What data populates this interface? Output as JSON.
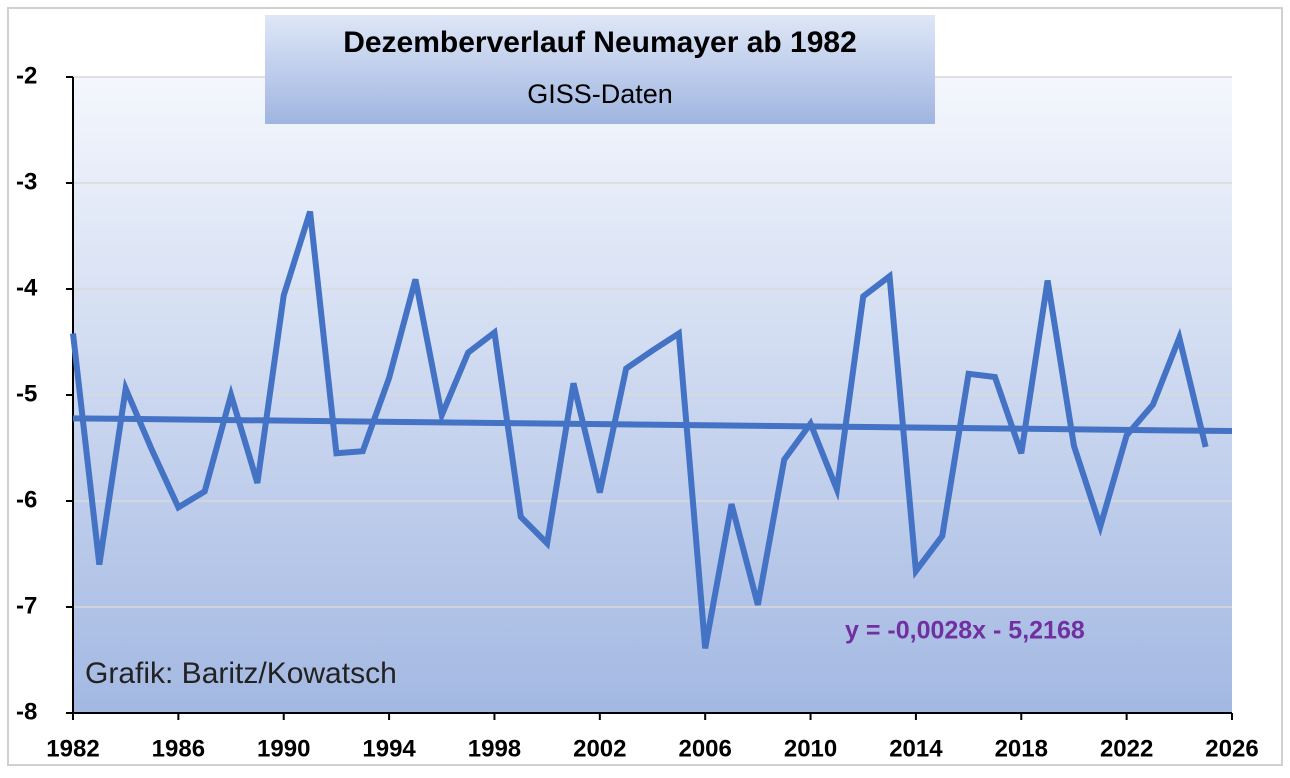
{
  "chart_data": {
    "type": "line",
    "title": "Dezemberverlauf Neumayer ab 1982",
    "subtitle": "GISS-Daten",
    "annotations": [
      "y = -0,0028x - 5,2168",
      "Grafik: Baritz/Kowatsch"
    ],
    "x": [
      1982,
      1983,
      1984,
      1985,
      1986,
      1987,
      1988,
      1989,
      1990,
      1991,
      1992,
      1993,
      1994,
      1995,
      1996,
      1997,
      1998,
      1999,
      2000,
      2001,
      2002,
      2003,
      2004,
      2005,
      2006,
      2007,
      2008,
      2009,
      2010,
      2011,
      2012,
      2013,
      2014,
      2015,
      2016,
      2017,
      2018,
      2019,
      2020,
      2021,
      2022,
      2023,
      2024,
      2025
    ],
    "values": [
      -4.42,
      -6.6,
      -4.94,
      -5.52,
      -6.06,
      -5.91,
      -5.0,
      -5.83,
      -4.06,
      -3.27,
      -5.55,
      -5.53,
      -4.84,
      -3.91,
      -5.19,
      -4.6,
      -4.41,
      -6.15,
      -6.4,
      -4.89,
      -5.92,
      -4.75,
      -4.58,
      -4.42,
      -7.39,
      -6.03,
      -6.98,
      -5.61,
      -5.27,
      -5.89,
      -4.07,
      -3.88,
      -6.66,
      -6.33,
      -4.8,
      -4.83,
      -5.55,
      -3.92,
      -5.48,
      -6.24,
      -5.38,
      -5.09,
      -4.46,
      -5.49
    ],
    "color": "#4472c4",
    "trendline": {
      "x": [
        1982,
        2026
      ],
      "values": [
        -5.22,
        -5.34
      ]
    },
    "annotation_color": "#7030a0",
    "xlim": [
      1982,
      2026
    ],
    "xticks": [
      1982,
      1986,
      1990,
      1994,
      1998,
      2002,
      2006,
      2010,
      2014,
      2018,
      2022,
      2026
    ],
    "ylim": [
      -8,
      -2
    ],
    "yticks": [
      -8,
      -7,
      -6,
      -5,
      -4,
      -3,
      -2
    ],
    "grid": true
  }
}
